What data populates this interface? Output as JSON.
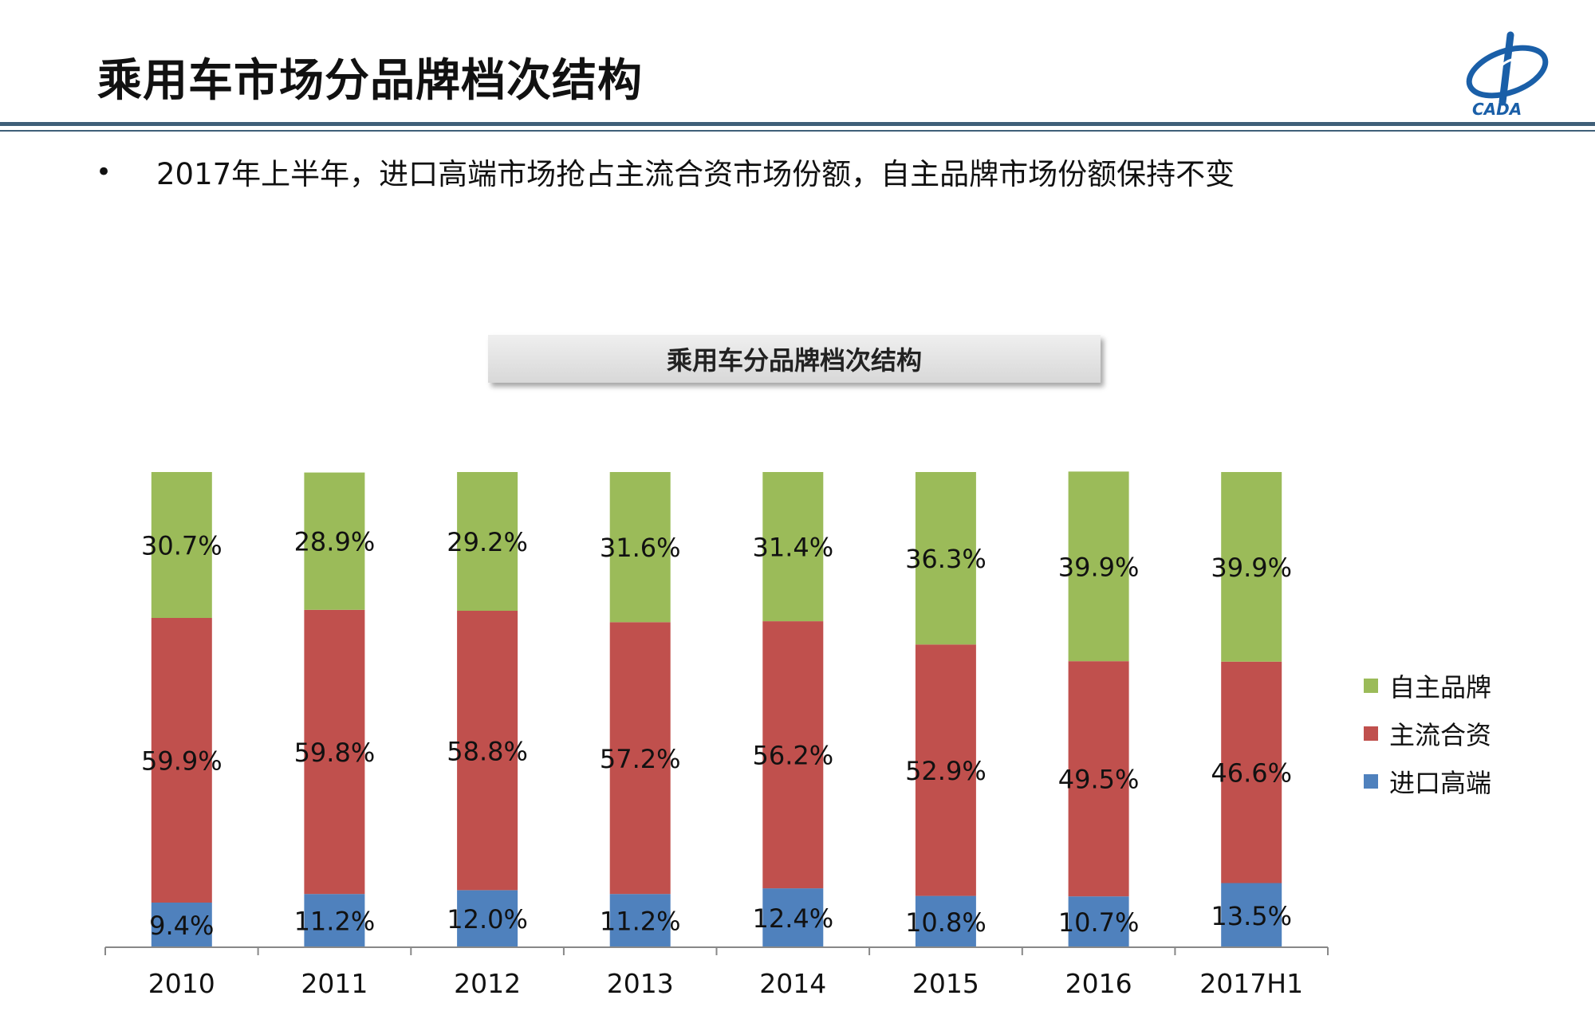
{
  "header": {
    "title": "乘用车市场分品牌档次结构",
    "logo_text": "CADA"
  },
  "bullet": {
    "symbol": "•",
    "text": "2017年上半年，进口高端市场抢占主流合资市场份额，自主品牌市场份额保持不变"
  },
  "colors": {
    "accent_rule": "#3f5f78",
    "logo_blue": "#1a5fa8",
    "domestic": "#9bbb59",
    "jv": "#c0504d",
    "import": "#4f81bd"
  },
  "chart_data": {
    "type": "bar",
    "stacked": true,
    "percent_stacked": true,
    "title": "乘用车分品牌档次结构",
    "categories": [
      "2010",
      "2011",
      "2012",
      "2013",
      "2014",
      "2015",
      "2016",
      "2017H1"
    ],
    "series": [
      {
        "name": "进口高端",
        "color": "#4f81bd",
        "values": [
          9.4,
          11.2,
          12.0,
          11.2,
          12.4,
          10.8,
          10.7,
          13.5
        ],
        "labels": [
          "9.4%",
          "11.2%",
          "12.0%",
          "11.2%",
          "12.4%",
          "10.8%",
          "10.7%",
          "13.5%"
        ]
      },
      {
        "name": "主流合资",
        "color": "#c0504d",
        "values": [
          59.9,
          59.8,
          58.8,
          57.2,
          56.2,
          52.9,
          49.5,
          46.6
        ],
        "labels": [
          "59.9%",
          "59.8%",
          "58.8%",
          "57.2%",
          "56.2%",
          "52.9%",
          "49.5%",
          "46.6%"
        ]
      },
      {
        "name": "自主品牌",
        "color": "#9bbb59",
        "values": [
          30.7,
          28.9,
          29.2,
          31.6,
          31.4,
          36.3,
          39.9,
          39.9
        ],
        "labels": [
          "30.7%",
          "28.9%",
          "29.2%",
          "31.6%",
          "31.4%",
          "36.3%",
          "39.9%",
          "39.9%"
        ]
      }
    ],
    "ylim": [
      0,
      100
    ],
    "grid": false,
    "legend_position": "right"
  }
}
